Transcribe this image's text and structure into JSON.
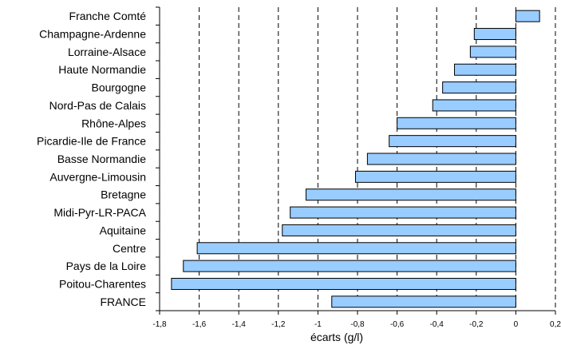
{
  "chart_data": {
    "type": "bar",
    "orientation": "horizontal",
    "categories": [
      "Franche Comté",
      "Champagne-Ardenne",
      "Lorraine-Alsace",
      "Haute Normandie",
      "Bourgogne",
      "Nord-Pas de Calais",
      "Rhône-Alpes",
      "Picardie-Ile de France",
      "Basse Normandie",
      "Auvergne-Limousin",
      "Bretagne",
      "Midi-Pyr-LR-PACA",
      "Aquitaine",
      "Centre",
      "Pays de la Loire",
      "Poitou-Charentes",
      "FRANCE"
    ],
    "values": [
      0.12,
      -0.21,
      -0.23,
      -0.31,
      -0.37,
      -0.42,
      -0.6,
      -0.64,
      -0.75,
      -0.81,
      -1.06,
      -1.14,
      -1.18,
      -1.61,
      -1.68,
      -1.74,
      -0.93
    ],
    "xlabel": "écarts (g/l)",
    "xlim": [
      -1.8,
      0.2
    ],
    "xticks": [
      "-1,8",
      "-1,6",
      "-1,4",
      "-1,2",
      "-1",
      "-0,8",
      "-0,6",
      "-0,4",
      "-0,2",
      "0",
      "0,2"
    ],
    "xtick_values": [
      -1.8,
      -1.6,
      -1.4,
      -1.2,
      -1.0,
      -0.8,
      -0.6,
      -0.4,
      -0.2,
      0,
      0.2
    ],
    "grid": "vertical dashed",
    "colors": {
      "bar_fill": "#99ccff",
      "bar_stroke": "#000000"
    }
  }
}
